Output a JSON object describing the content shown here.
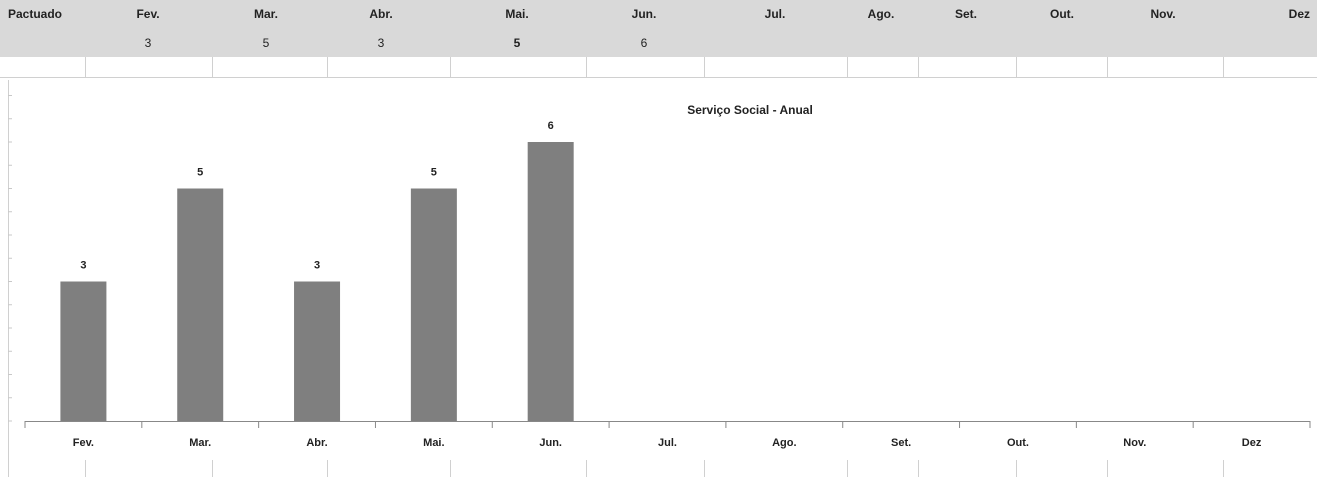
{
  "sheet": {
    "header": [
      "Pactuado",
      "Fev.",
      "Mar.",
      "Abr.",
      "Mai.",
      "Jun.",
      "Jul.",
      "Ago.",
      "Set.",
      "Out.",
      "Nov.",
      "Dez"
    ],
    "values": [
      3,
      5,
      3,
      5,
      6
    ]
  },
  "chart_data": {
    "type": "bar",
    "title": "Serviço Social - Anual",
    "categories": [
      "Fev.",
      "Mar.",
      "Abr.",
      "Mai.",
      "Jun.",
      "Jul.",
      "Ago.",
      "Set.",
      "Out.",
      "Nov.",
      "Dez"
    ],
    "values": [
      3,
      5,
      3,
      5,
      6,
      null,
      null,
      null,
      null,
      null,
      null
    ],
    "color": "#7f7f7f",
    "ylim": [
      0,
      7
    ],
    "yticks": [
      0,
      0.5,
      1,
      1.5,
      2,
      2.5,
      3,
      3.5,
      4,
      4.5,
      5,
      5.5,
      6,
      6.5,
      7
    ]
  }
}
